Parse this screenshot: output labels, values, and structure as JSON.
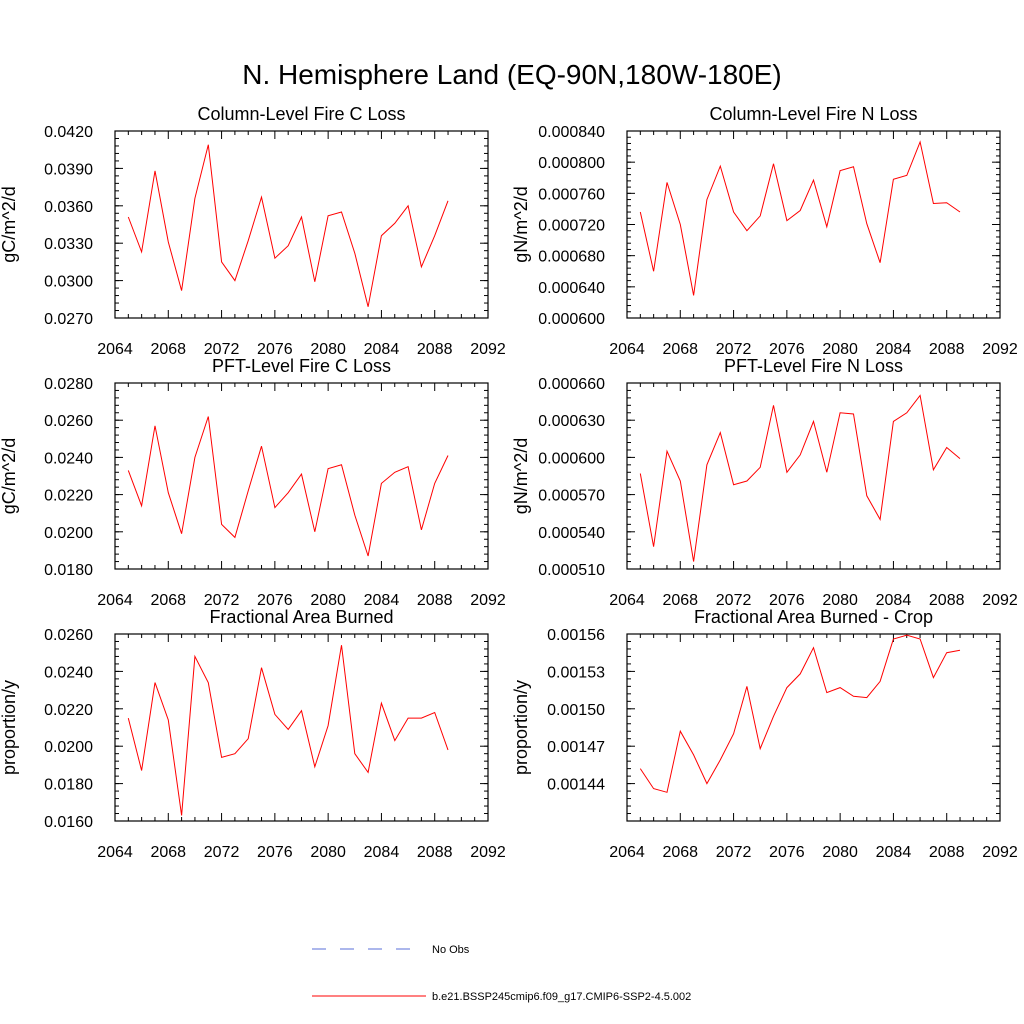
{
  "figure": {
    "title": "N. Hemisphere Land (EQ-90N,180W-180E)"
  },
  "legend": {
    "entries": [
      {
        "label": "No Obs",
        "color": "#5a6fd8",
        "style": "dashed"
      },
      {
        "label": "b.e21.BSSP245cmip6.f09_g17.CMIP6-SSP2-4.5.002",
        "color": "#ff0000",
        "style": "solid"
      }
    ]
  },
  "chart_data": [
    {
      "type": "line",
      "title": "Column-Level Fire C Loss",
      "ylabel": "gC/m^2/d",
      "xlabel": "",
      "xlim": [
        2064,
        2092
      ],
      "xticks": [
        2064,
        2068,
        2072,
        2076,
        2080,
        2084,
        2088,
        2092
      ],
      "xtick_labels": [
        "2064",
        "2068",
        "2072",
        "2076",
        "2080",
        "2084",
        "2088",
        "2092"
      ],
      "ylim": [
        0.027,
        0.042
      ],
      "yticks": [
        0.027,
        0.03,
        0.033,
        0.036,
        0.039,
        0.042
      ],
      "ytick_labels": [
        "0.0270",
        "0.0300",
        "0.0330",
        "0.0360",
        "0.0390",
        "0.0420"
      ],
      "grid": false,
      "series": [
        {
          "color": "#ff0000",
          "x": [
            2065,
            2066,
            2067,
            2068,
            2069,
            2070,
            2071,
            2072,
            2073,
            2074,
            2075,
            2076,
            2077,
            2078,
            2079,
            2080,
            2081,
            2082,
            2083,
            2084,
            2085,
            2086,
            2087,
            2088,
            2089
          ],
          "y": [
            0.0351,
            0.0323,
            0.0388,
            0.0331,
            0.0292,
            0.0366,
            0.0409,
            0.0315,
            0.03,
            0.0332,
            0.0367,
            0.0318,
            0.0328,
            0.0351,
            0.0299,
            0.0352,
            0.0355,
            0.0322,
            0.0279,
            0.0336,
            0.0346,
            0.036,
            0.0311,
            0.0336,
            0.0364
          ]
        }
      ]
    },
    {
      "type": "line",
      "title": "Column-Level Fire N Loss",
      "ylabel": "gN/m^2/d",
      "xlabel": "",
      "xlim": [
        2064,
        2092
      ],
      "xticks": [
        2064,
        2068,
        2072,
        2076,
        2080,
        2084,
        2088,
        2092
      ],
      "xtick_labels": [
        "2064",
        "2068",
        "2072",
        "2076",
        "2080",
        "2084",
        "2088",
        "2092"
      ],
      "ylim": [
        0.0006,
        0.00084
      ],
      "yticks": [
        0.0006,
        0.00064,
        0.00068,
        0.00072,
        0.00076,
        0.0008,
        0.00084
      ],
      "ytick_labels": [
        "0.000600",
        "0.000640",
        "0.000680",
        "0.000720",
        "0.000760",
        "0.000800",
        "0.000840"
      ],
      "grid": false,
      "series": [
        {
          "color": "#ff0000",
          "x": [
            2065,
            2066,
            2067,
            2068,
            2069,
            2070,
            2071,
            2072,
            2073,
            2074,
            2075,
            2076,
            2077,
            2078,
            2079,
            2080,
            2081,
            2082,
            2083,
            2084,
            2085,
            2086,
            2087,
            2088,
            2089
          ],
          "y": [
            0.000736,
            0.00066,
            0.000774,
            0.00072,
            0.000629,
            0.000752,
            0.000795,
            0.000736,
            0.000712,
            0.000731,
            0.000798,
            0.000725,
            0.000738,
            0.000777,
            0.000717,
            0.000789,
            0.000794,
            0.000721,
            0.000671,
            0.000778,
            0.000783,
            0.000826,
            0.000747,
            0.000748,
            0.000736
          ]
        }
      ]
    },
    {
      "type": "line",
      "title": "PFT-Level Fire C Loss",
      "ylabel": "gC/m^2/d",
      "xlabel": "",
      "xlim": [
        2064,
        2092
      ],
      "xticks": [
        2064,
        2068,
        2072,
        2076,
        2080,
        2084,
        2088,
        2092
      ],
      "xtick_labels": [
        "2064",
        "2068",
        "2072",
        "2076",
        "2080",
        "2084",
        "2088",
        "2092"
      ],
      "ylim": [
        0.018,
        0.028
      ],
      "yticks": [
        0.018,
        0.02,
        0.022,
        0.024,
        0.026,
        0.028
      ],
      "ytick_labels": [
        "0.0180",
        "0.0200",
        "0.0220",
        "0.0240",
        "0.0260",
        "0.0280"
      ],
      "grid": false,
      "series": [
        {
          "color": "#ff0000",
          "x": [
            2065,
            2066,
            2067,
            2068,
            2069,
            2070,
            2071,
            2072,
            2073,
            2074,
            2075,
            2076,
            2077,
            2078,
            2079,
            2080,
            2081,
            2082,
            2083,
            2084,
            2085,
            2086,
            2087,
            2088,
            2089
          ],
          "y": [
            0.0233,
            0.0214,
            0.0257,
            0.0221,
            0.0199,
            0.024,
            0.0262,
            0.0204,
            0.0197,
            0.0222,
            0.0246,
            0.0213,
            0.0221,
            0.0231,
            0.02,
            0.0234,
            0.0236,
            0.0209,
            0.0187,
            0.0226,
            0.0232,
            0.0235,
            0.0201,
            0.0226,
            0.0241
          ]
        }
      ]
    },
    {
      "type": "line",
      "title": "PFT-Level Fire N Loss",
      "ylabel": "gN/m^2/d",
      "xlabel": "",
      "xlim": [
        2064,
        2092
      ],
      "xticks": [
        2064,
        2068,
        2072,
        2076,
        2080,
        2084,
        2088,
        2092
      ],
      "xtick_labels": [
        "2064",
        "2068",
        "2072",
        "2076",
        "2080",
        "2084",
        "2088",
        "2092"
      ],
      "ylim": [
        0.00051,
        0.00066
      ],
      "yticks": [
        0.00051,
        0.00054,
        0.00057,
        0.0006,
        0.00063,
        0.00066
      ],
      "ytick_labels": [
        "0.000510",
        "0.000540",
        "0.000570",
        "0.000600",
        "0.000630",
        "0.000660"
      ],
      "grid": false,
      "series": [
        {
          "color": "#ff0000",
          "x": [
            2065,
            2066,
            2067,
            2068,
            2069,
            2070,
            2071,
            2072,
            2073,
            2074,
            2075,
            2076,
            2077,
            2078,
            2079,
            2080,
            2081,
            2082,
            2083,
            2084,
            2085,
            2086,
            2087,
            2088,
            2089
          ],
          "y": [
            0.000587,
            0.000528,
            0.000605,
            0.000581,
            0.000516,
            0.000594,
            0.00062,
            0.000578,
            0.000581,
            0.000592,
            0.000642,
            0.000588,
            0.000602,
            0.000629,
            0.000588,
            0.000636,
            0.000635,
            0.000569,
            0.00055,
            0.000629,
            0.000636,
            0.00065,
            0.00059,
            0.000608,
            0.000599
          ]
        }
      ]
    },
    {
      "type": "line",
      "title": "Fractional Area Burned",
      "ylabel": "proportion/y",
      "xlabel": "",
      "xlim": [
        2064,
        2092
      ],
      "xticks": [
        2064,
        2068,
        2072,
        2076,
        2080,
        2084,
        2088,
        2092
      ],
      "xtick_labels": [
        "2064",
        "2068",
        "2072",
        "2076",
        "2080",
        "2084",
        "2088",
        "2092"
      ],
      "ylim": [
        0.016,
        0.026
      ],
      "yticks": [
        0.016,
        0.018,
        0.02,
        0.022,
        0.024,
        0.026
      ],
      "ytick_labels": [
        "0.0160",
        "0.0180",
        "0.0200",
        "0.0220",
        "0.0240",
        "0.0260"
      ],
      "grid": false,
      "series": [
        {
          "color": "#ff0000",
          "x": [
            2065,
            2066,
            2067,
            2068,
            2069,
            2070,
            2071,
            2072,
            2073,
            2074,
            2075,
            2076,
            2077,
            2078,
            2079,
            2080,
            2081,
            2082,
            2083,
            2084,
            2085,
            2086,
            2087,
            2088,
            2089
          ],
          "y": [
            0.0215,
            0.0187,
            0.0234,
            0.0214,
            0.0163,
            0.0248,
            0.0234,
            0.0194,
            0.0196,
            0.0204,
            0.0242,
            0.0217,
            0.0209,
            0.0219,
            0.0189,
            0.0211,
            0.0254,
            0.0196,
            0.0186,
            0.0223,
            0.0203,
            0.0215,
            0.0215,
            0.0218,
            0.0198
          ]
        }
      ]
    },
    {
      "type": "line",
      "title": "Fractional Area Burned - Crop",
      "ylabel": "proportion/y",
      "xlabel": "",
      "xlim": [
        2064,
        2092
      ],
      "xticks": [
        2064,
        2068,
        2072,
        2076,
        2080,
        2084,
        2088,
        2092
      ],
      "xtick_labels": [
        "2064",
        "2068",
        "2072",
        "2076",
        "2080",
        "2084",
        "2088",
        "2092"
      ],
      "ylim": [
        0.00141,
        0.00156
      ],
      "yticks": [
        0.00144,
        0.00147,
        0.0015,
        0.00153,
        0.00156
      ],
      "ytick_labels": [
        "0.00144",
        "0.00147",
        "0.00150",
        "0.00153",
        "0.00156"
      ],
      "grid": false,
      "series": [
        {
          "color": "#ff0000",
          "x": [
            2065,
            2066,
            2067,
            2068,
            2069,
            2070,
            2071,
            2072,
            2073,
            2074,
            2075,
            2076,
            2077,
            2078,
            2079,
            2080,
            2081,
            2082,
            2083,
            2084,
            2085,
            2086,
            2087,
            2088,
            2089
          ],
          "y": [
            0.001452,
            0.001436,
            0.001433,
            0.001482,
            0.001463,
            0.00144,
            0.001459,
            0.00148,
            0.001518,
            0.001468,
            0.001494,
            0.001517,
            0.001528,
            0.001549,
            0.001513,
            0.001517,
            0.00151,
            0.001509,
            0.001522,
            0.001556,
            0.001559,
            0.001556,
            0.001525,
            0.001545,
            0.001547
          ]
        }
      ]
    }
  ]
}
